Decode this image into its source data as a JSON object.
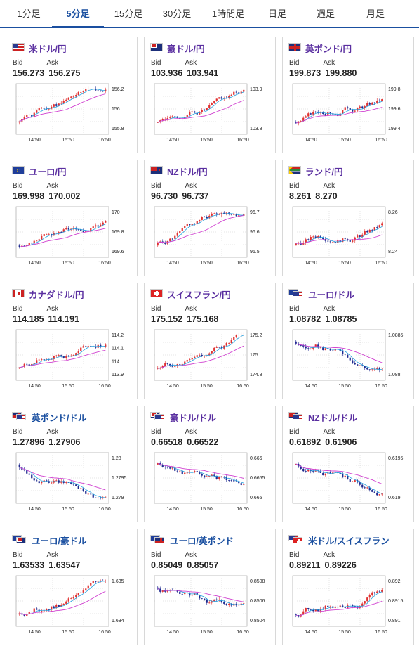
{
  "tabs": [
    "1分足",
    "5分足",
    "15分足",
    "30分足",
    "1時間足",
    "日足",
    "週足",
    "月足"
  ],
  "active_tab": 1,
  "labels": {
    "bid": "Bid",
    "ask": "Ask"
  },
  "colors": {
    "up": "#e03030",
    "down": "#1f2a8f",
    "ma_short": "#20a0e0",
    "ma_long": "#d040d0",
    "pair_purple": "#5a2fa0",
    "pair_blue": "#1a4fa0",
    "active_tab": "#1a4fa0"
  },
  "cards": [
    {
      "pair": "米ドル/円",
      "flag": "us",
      "name_color": "purple",
      "bid": "156.273",
      "ask": "156.275",
      "chart": {
        "yticks": [
          "156.2",
          "156",
          "155.8"
        ],
        "xticks": [
          "14:50",
          "15:50",
          "16:50"
        ],
        "trend": "up",
        "seed": 1
      }
    },
    {
      "pair": "豪ドル/円",
      "flag": "au",
      "name_color": "purple",
      "bid": "103.936",
      "ask": "103.941",
      "chart": {
        "yticks": [
          "103.9",
          "103.8"
        ],
        "xticks": [
          "14:50",
          "15:50",
          "16:50"
        ],
        "trend": "up",
        "seed": 2
      }
    },
    {
      "pair": "英ポンド/円",
      "flag": "uk",
      "name_color": "purple",
      "bid": "199.873",
      "ask": "199.880",
      "chart": {
        "yticks": [
          "199.8",
          "199.6",
          "199.4"
        ],
        "xticks": [
          "14:50",
          "15:50",
          "16:50"
        ],
        "trend": "up",
        "seed": 3
      }
    },
    {
      "pair": "ユーロ/円",
      "flag": "eu",
      "name_color": "purple",
      "bid": "169.998",
      "ask": "170.002",
      "chart": {
        "yticks": [
          "170",
          "169.8",
          "169.6"
        ],
        "xticks": [
          "14:50",
          "15:50",
          "16:50"
        ],
        "trend": "up",
        "seed": 4
      }
    },
    {
      "pair": "NZドル/円",
      "flag": "nz",
      "name_color": "purple",
      "bid": "96.730",
      "ask": "96.737",
      "chart": {
        "yticks": [
          "96.7",
          "96.6",
          "96.5"
        ],
        "xticks": [
          "14:50",
          "15:50",
          "16:50"
        ],
        "trend": "up",
        "seed": 5
      }
    },
    {
      "pair": "ランド/円",
      "flag": "za",
      "name_color": "purple",
      "bid": "8.261",
      "ask": "8.270",
      "chart": {
        "yticks": [
          "8.26",
          "8.24"
        ],
        "xticks": [
          "14:50",
          "15:50",
          "16:50"
        ],
        "trend": "up",
        "seed": 6
      }
    },
    {
      "pair": "カナダドル/円",
      "flag": "ca",
      "name_color": "purple",
      "bid": "114.185",
      "ask": "114.191",
      "chart": {
        "yticks": [
          "114.2",
          "114.1",
          "114",
          "113.9"
        ],
        "xticks": [
          "14:50",
          "15:50",
          "16:50"
        ],
        "trend": "up",
        "seed": 7
      }
    },
    {
      "pair": "スイスフラン/円",
      "flag": "ch",
      "name_color": "purple",
      "bid": "175.152",
      "ask": "175.168",
      "chart": {
        "yticks": [
          "175.2",
          "175",
          "174.8"
        ],
        "xticks": [
          "14:50",
          "15:50",
          "16:50"
        ],
        "trend": "up",
        "seed": 8
      }
    },
    {
      "pair": "ユーロ/ドル",
      "flag": "euus",
      "name_color": "purple",
      "bid": "1.08782",
      "ask": "1.08785",
      "chart": {
        "yticks": [
          "1.0885",
          "1.088"
        ],
        "xticks": [
          "14:50",
          "15:50",
          "16:50"
        ],
        "trend": "down",
        "seed": 9
      }
    },
    {
      "pair": "英ポンド/ドル",
      "flag": "ukus",
      "name_color": "blue",
      "bid": "1.27896",
      "ask": "1.27906",
      "chart": {
        "yticks": [
          "1.28",
          "1.2795",
          "1.279"
        ],
        "xticks": [
          "14:50",
          "15:50",
          "16:50"
        ],
        "trend": "down",
        "seed": 10
      }
    },
    {
      "pair": "豪ドル/ドル",
      "flag": "auus",
      "name_color": "purple",
      "bid": "0.66518",
      "ask": "0.66522",
      "chart": {
        "yticks": [
          "0.666",
          "0.6655",
          "0.665"
        ],
        "xticks": [
          "14:50",
          "15:50",
          "16:50"
        ],
        "trend": "down",
        "seed": 11
      }
    },
    {
      "pair": "NZドル/ドル",
      "flag": "nzus",
      "name_color": "purple",
      "bid": "0.61892",
      "ask": "0.61906",
      "chart": {
        "yticks": [
          "0.6195",
          "0.619"
        ],
        "xticks": [
          "14:50",
          "15:50",
          "16:50"
        ],
        "trend": "down",
        "seed": 12
      }
    },
    {
      "pair": "ユーロ/豪ドル",
      "flag": "euau",
      "name_color": "blue",
      "bid": "1.63533",
      "ask": "1.63547",
      "chart": {
        "yticks": [
          "1.635",
          "1.634"
        ],
        "xticks": [
          "14:50",
          "15:50",
          "16:50"
        ],
        "trend": "up",
        "seed": 13
      }
    },
    {
      "pair": "ユーロ/英ポンド",
      "flag": "euuk",
      "name_color": "blue",
      "bid": "0.85049",
      "ask": "0.85057",
      "chart": {
        "yticks": [
          "0.8508",
          "0.8506",
          "0.8504"
        ],
        "xticks": [
          "14:50",
          "15:50",
          "16:50"
        ],
        "trend": "down",
        "seed": 14
      }
    },
    {
      "pair": "米ドル/スイスフラン",
      "flag": "usch",
      "name_color": "blue",
      "bid": "0.89211",
      "ask": "0.89226",
      "chart": {
        "yticks": [
          "0.892",
          "0.8915",
          "0.891"
        ],
        "xticks": [
          "14:50",
          "15:50",
          "16:50"
        ],
        "trend": "up",
        "seed": 15
      }
    }
  ]
}
